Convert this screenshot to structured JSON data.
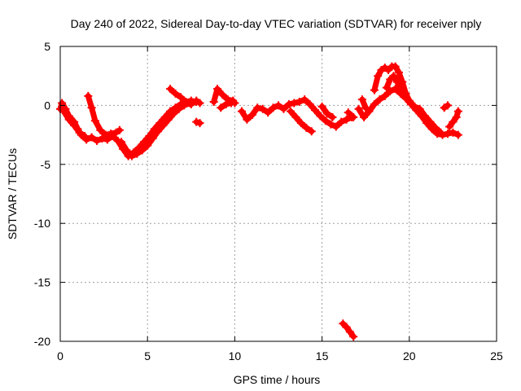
{
  "chart_data": {
    "type": "scatter",
    "title": "Day 240 of 2022, Sidereal Day-to-day VTEC variation (SDTVAR) for receiver nply",
    "xlabel": "GPS time / hours",
    "ylabel": "SDTVAR / TECUs",
    "xlim": [
      0,
      25
    ],
    "ylim": [
      -20,
      5
    ],
    "xticks": [
      0,
      5,
      10,
      15,
      20,
      25
    ],
    "yticks": [
      -20,
      -15,
      -10,
      -5,
      0,
      5
    ],
    "grid": true,
    "series": [
      {
        "name": "SDTVAR",
        "color": "#ff0000",
        "marker": "+",
        "tracks": [
          [
            [
              0.0,
              -0.3
            ],
            [
              0.1,
              0.2
            ],
            [
              0.3,
              -0.3
            ],
            [
              0.5,
              -0.9
            ],
            [
              0.8,
              -1.4
            ],
            [
              1.0,
              -2.0
            ],
            [
              1.2,
              -2.5
            ],
            [
              1.5,
              -2.9
            ],
            [
              1.8,
              -2.7
            ],
            [
              2.1,
              -3.0
            ],
            [
              2.4,
              -2.8
            ],
            [
              2.7,
              -2.9
            ],
            [
              3.0,
              -2.6
            ],
            [
              3.3,
              -3.0
            ],
            [
              3.6,
              -3.7
            ],
            [
              3.9,
              -4.3
            ],
            [
              4.2,
              -4.0
            ],
            [
              4.5,
              -3.6
            ],
            [
              4.8,
              -3.1
            ],
            [
              5.1,
              -2.6
            ],
            [
              5.4,
              -2.0
            ],
            [
              5.7,
              -1.5
            ],
            [
              6.0,
              -1.0
            ],
            [
              6.3,
              -0.5
            ],
            [
              6.6,
              -0.2
            ],
            [
              6.9,
              0.1
            ],
            [
              7.2,
              0.3
            ],
            [
              7.5,
              0.4
            ],
            [
              7.8,
              0.3
            ]
          ],
          [
            [
              0.2,
              -0.5
            ],
            [
              0.5,
              -1.2
            ],
            [
              0.8,
              -1.7
            ],
            [
              1.1,
              -2.3
            ],
            [
              1.4,
              -2.6
            ]
          ],
          [
            [
              1.6,
              0.8
            ],
            [
              1.8,
              -0.2
            ],
            [
              2.0,
              -1.3
            ],
            [
              2.3,
              -2.1
            ],
            [
              2.6,
              -2.5
            ],
            [
              2.9,
              -2.4
            ],
            [
              3.2,
              -2.3
            ],
            [
              3.4,
              -2.1
            ]
          ],
          [
            [
              3.5,
              -3.1
            ],
            [
              3.8,
              -3.8
            ],
            [
              4.1,
              -4.3
            ],
            [
              4.4,
              -4.1
            ],
            [
              4.7,
              -3.8
            ],
            [
              5.0,
              -3.4
            ],
            [
              5.3,
              -2.8
            ],
            [
              5.6,
              -2.2
            ],
            [
              5.9,
              -1.7
            ],
            [
              6.2,
              -1.2
            ],
            [
              6.5,
              -0.7
            ],
            [
              6.8,
              -0.3
            ],
            [
              7.1,
              0.0
            ],
            [
              7.4,
              0.2
            ]
          ],
          [
            [
              6.3,
              1.4
            ],
            [
              6.6,
              1.0
            ],
            [
              6.9,
              0.7
            ],
            [
              7.2,
              0.3
            ],
            [
              7.5,
              0.1
            ],
            [
              7.8,
              0.4
            ],
            [
              8.0,
              0.2
            ]
          ],
          [
            [
              7.8,
              -1.4
            ],
            [
              8.0,
              -1.5
            ]
          ],
          [
            [
              8.8,
              0.3
            ],
            [
              9.0,
              1.4
            ],
            [
              9.3,
              0.9
            ],
            [
              9.6,
              0.5
            ],
            [
              9.9,
              0.4
            ],
            [
              10.0,
              0.2
            ]
          ],
          [
            [
              9.2,
              -0.2
            ],
            [
              9.5,
              0.1
            ],
            [
              9.8,
              0.2
            ]
          ],
          [
            [
              10.4,
              -0.5
            ],
            [
              10.7,
              -1.2
            ],
            [
              11.0,
              -0.8
            ],
            [
              11.3,
              -0.2
            ],
            [
              11.6,
              -0.3
            ],
            [
              11.9,
              -0.6
            ],
            [
              12.2,
              -0.2
            ],
            [
              12.5,
              0.0
            ],
            [
              12.8,
              -0.3
            ],
            [
              13.1,
              0.1
            ],
            [
              13.4,
              0.2
            ],
            [
              13.7,
              0.3
            ],
            [
              14.0,
              0.5
            ],
            [
              14.3,
              0.1
            ],
            [
              14.6,
              -0.4
            ],
            [
              14.9,
              -0.9
            ],
            [
              15.2,
              -1.3
            ],
            [
              15.5,
              -1.6
            ],
            [
              15.8,
              -1.8
            ],
            [
              16.1,
              -1.4
            ],
            [
              16.4,
              -1.2
            ],
            [
              16.7,
              -1.0
            ]
          ],
          [
            [
              13.2,
              -0.5
            ],
            [
              13.5,
              -1.0
            ],
            [
              13.8,
              -1.5
            ],
            [
              14.1,
              -1.9
            ],
            [
              14.4,
              -2.2
            ]
          ],
          [
            [
              15.0,
              -0.1
            ],
            [
              15.3,
              -0.7
            ],
            [
              15.6,
              -1.0
            ]
          ],
          [
            [
              16.5,
              -0.6
            ],
            [
              16.8,
              -1.0
            ]
          ],
          [
            [
              17.1,
              -0.3
            ],
            [
              17.4,
              -1.0
            ],
            [
              17.7,
              -0.5
            ],
            [
              18.0,
              0.1
            ],
            [
              18.3,
              0.5
            ],
            [
              18.6,
              0.8
            ],
            [
              18.9,
              1.2
            ],
            [
              19.2,
              1.4
            ],
            [
              19.5,
              1.0
            ],
            [
              19.8,
              0.6
            ],
            [
              20.1,
              0.1
            ],
            [
              20.4,
              -0.4
            ],
            [
              20.7,
              -0.9
            ],
            [
              21.0,
              -1.5
            ],
            [
              21.3,
              -2.0
            ],
            [
              21.6,
              -2.4
            ],
            [
              21.9,
              -2.5
            ],
            [
              22.2,
              -2.4
            ],
            [
              22.5,
              -2.3
            ],
            [
              22.8,
              -2.5
            ]
          ],
          [
            [
              18.0,
              1.3
            ],
            [
              18.2,
              2.5
            ],
            [
              18.4,
              3.0
            ],
            [
              18.6,
              3.2
            ],
            [
              18.8,
              3.0
            ],
            [
              19.0,
              3.3
            ],
            [
              19.2,
              3.3
            ],
            [
              19.4,
              2.8
            ],
            [
              19.6,
              2.0
            ],
            [
              19.8,
              1.0
            ],
            [
              20.0,
              0.4
            ],
            [
              20.3,
              -0.1
            ],
            [
              20.6,
              -0.3
            ],
            [
              20.9,
              -0.9
            ],
            [
              21.2,
              -1.4
            ],
            [
              21.5,
              -1.9
            ],
            [
              21.8,
              -2.3
            ]
          ],
          [
            [
              18.7,
              1.5
            ],
            [
              18.9,
              2.2
            ],
            [
              19.1,
              2.5
            ],
            [
              19.3,
              2.0
            ],
            [
              19.5,
              1.5
            ],
            [
              19.7,
              1.0
            ]
          ],
          [
            [
              17.3,
              0.5
            ],
            [
              17.5,
              -0.2
            ]
          ],
          [
            [
              22.3,
              -1.8
            ],
            [
              22.5,
              -1.4
            ],
            [
              22.7,
              -1.0
            ],
            [
              22.8,
              -0.5
            ]
          ],
          [
            [
              22.0,
              -0.2
            ],
            [
              22.2,
              0.0
            ]
          ],
          [
            [
              16.2,
              -18.5
            ],
            [
              16.4,
              -18.8
            ],
            [
              16.6,
              -19.2
            ],
            [
              16.8,
              -19.6
            ]
          ]
        ]
      }
    ]
  }
}
